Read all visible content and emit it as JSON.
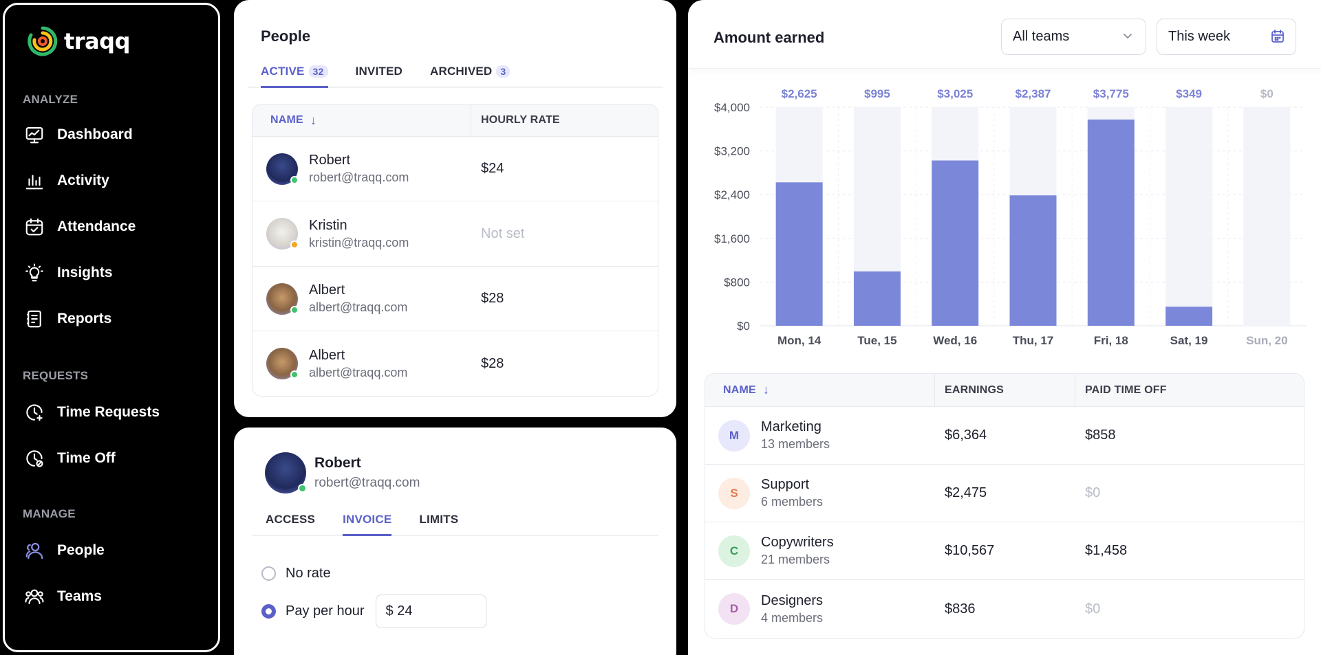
{
  "app": {
    "logo_text": "traqq"
  },
  "sidebar": {
    "sections": [
      {
        "label": "ANALYZE",
        "items": [
          {
            "label": "Dashboard",
            "icon": "dashboard-icon"
          },
          {
            "label": "Activity",
            "icon": "activity-icon"
          },
          {
            "label": "Attendance",
            "icon": "attendance-icon"
          },
          {
            "label": "Insights",
            "icon": "insights-icon"
          },
          {
            "label": "Reports",
            "icon": "reports-icon"
          }
        ]
      },
      {
        "label": "REQUESTS",
        "items": [
          {
            "label": "Time Requests",
            "icon": "time-requests-icon"
          },
          {
            "label": "Time Off",
            "icon": "time-off-icon"
          }
        ]
      },
      {
        "label": "MANAGE",
        "items": [
          {
            "label": "People",
            "icon": "people-icon",
            "active": true
          },
          {
            "label": "Teams",
            "icon": "teams-icon"
          }
        ]
      }
    ]
  },
  "people": {
    "title": "People",
    "tabs": [
      {
        "label": "ACTIVE",
        "count": "32",
        "active": true
      },
      {
        "label": "INVITED",
        "count": ""
      },
      {
        "label": "ARCHIVED",
        "count": "3"
      }
    ],
    "columns": {
      "name": "NAME",
      "rate": "HOURLY RATE"
    },
    "rows": [
      {
        "name": "Robert",
        "email": "robert@traqq.com",
        "rate": "$24",
        "status": "online",
        "rate_set": true
      },
      {
        "name": "Kristin",
        "email": "kristin@traqq.com",
        "rate": "Not set",
        "status": "away",
        "rate_set": false
      },
      {
        "name": "Albert",
        "email": "albert@traqq.com",
        "rate": "$28",
        "status": "online",
        "rate_set": true
      },
      {
        "name": "Albert",
        "email": "albert@traqq.com",
        "rate": "$28",
        "status": "online",
        "rate_set": true
      }
    ]
  },
  "profile": {
    "name": "Robert",
    "email": "robert@traqq.com",
    "tabs": [
      {
        "label": "ACCESS",
        "active": false
      },
      {
        "label": "INVOICE",
        "active": true
      },
      {
        "label": "LIMITS",
        "active": false
      }
    ],
    "options": [
      {
        "label": "No rate",
        "checked": false
      },
      {
        "label": "Pay per hour",
        "checked": true
      }
    ],
    "rate_input": "$ 24"
  },
  "earned": {
    "title": "Amount earned",
    "team_select": "All teams",
    "period_select": "This week",
    "chart_data": {
      "type": "bar",
      "categories": [
        "Mon, 14",
        "Tue, 15",
        "Wed, 16",
        "Thu, 17",
        "Fri, 18",
        "Sat, 19",
        "Sun, 20"
      ],
      "values": [
        2625,
        995,
        3025,
        2387,
        3775,
        349,
        0
      ],
      "data_labels": [
        "$2,625",
        "$995",
        "$3,025",
        "$2,387",
        "$3,775",
        "$349",
        "$0"
      ],
      "y_ticks": [
        "$0",
        "$800",
        "$1,600",
        "$2,400",
        "$3,200",
        "$4,000"
      ],
      "ylim": [
        0,
        4000
      ],
      "bar_color": "#7b88d9",
      "track_color": "#f3f4fa"
    },
    "columns": {
      "name": "NAME",
      "earnings": "EARNINGS",
      "pto": "PAID TIME OFF"
    },
    "teams": [
      {
        "initial": "M",
        "name": "Marketing",
        "members": "13 members",
        "earnings": "$6,364",
        "pto": "$858",
        "bg": "#e7e8fb",
        "fg": "#5b60c9",
        "pto_muted": false
      },
      {
        "initial": "S",
        "name": "Support",
        "members": "6 members",
        "earnings": "$2,475",
        "pto": "$0",
        "bg": "#fdece2",
        "fg": "#e07a4a",
        "pto_muted": true
      },
      {
        "initial": "C",
        "name": "Copywriters",
        "members": "21 members",
        "earnings": "$10,567",
        "pto": "$1,458",
        "bg": "#dcf3e2",
        "fg": "#3e9a5a",
        "pto_muted": false
      },
      {
        "initial": "D",
        "name": "Designers",
        "members": "4 members",
        "earnings": "$836",
        "pto": "$0",
        "bg": "#f3e2f3",
        "fg": "#a45ea4",
        "pto_muted": true
      }
    ]
  }
}
